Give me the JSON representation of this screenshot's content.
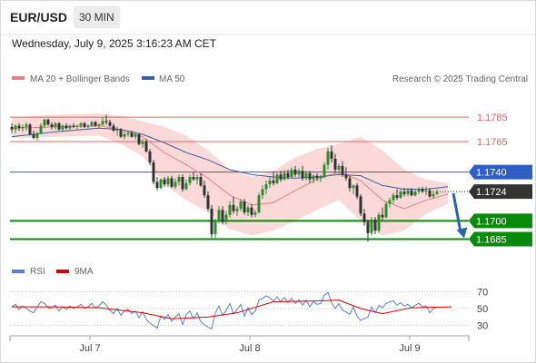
{
  "header": {
    "pair": "EUR/USD",
    "timeframe": "30 MIN",
    "datetime": "Wednesday, July 9, 2025 3:16:23 AM CET",
    "credit": "Research © 2025 Trading Central"
  },
  "colors": {
    "resistance": "#e06666",
    "pivot": "#2d5fc4",
    "support": "#0a8a0a",
    "bullish": "#2e8b2e",
    "bearish": "#333333",
    "bollinger_band": "#fcd9d9",
    "ma20": "#f08080",
    "ma50": "#3a5fa8",
    "arrow": "#2a64b0",
    "rsi": "#5b7fd6",
    "rsi_ma": "#d40000",
    "current": "#333333"
  },
  "chart_data": [
    {
      "type": "candlestick",
      "legend": [
        {
          "label": "MA 20 + Bollinger Bands",
          "color": "#f08080"
        },
        {
          "label": "MA 50",
          "color": "#3a5fa8"
        }
      ],
      "x_tick_labels": [
        "Jul 7",
        "Jul 8",
        "Jul 9"
      ],
      "ylim": [
        1.1675,
        1.18
      ],
      "candle_step": 4.0,
      "ohlc": [
        [
          1.1777,
          1.178,
          1.1772,
          1.1775
        ],
        [
          1.1775,
          1.1779,
          1.1772,
          1.1778
        ],
        [
          1.1778,
          1.178,
          1.1774,
          1.1776
        ],
        [
          1.1776,
          1.1779,
          1.1773,
          1.1777
        ],
        [
          1.1777,
          1.1781,
          1.1774,
          1.1779
        ],
        [
          1.1779,
          1.178,
          1.177,
          1.1771
        ],
        [
          1.1771,
          1.1774,
          1.1767,
          1.1768
        ],
        [
          1.1768,
          1.1773,
          1.1766,
          1.1772
        ],
        [
          1.1772,
          1.178,
          1.1771,
          1.1778
        ],
        [
          1.1778,
          1.1784,
          1.1776,
          1.1783
        ],
        [
          1.1783,
          1.1784,
          1.1778,
          1.1779
        ],
        [
          1.1779,
          1.1781,
          1.1775,
          1.1777
        ],
        [
          1.1777,
          1.1781,
          1.1775,
          1.178
        ],
        [
          1.178,
          1.1781,
          1.1774,
          1.1775
        ],
        [
          1.1775,
          1.1779,
          1.1773,
          1.1778
        ],
        [
          1.1778,
          1.178,
          1.1775,
          1.1776
        ],
        [
          1.1776,
          1.1779,
          1.1774,
          1.1778
        ],
        [
          1.1778,
          1.178,
          1.1776,
          1.1777
        ],
        [
          1.1777,
          1.1779,
          1.1775,
          1.1778
        ],
        [
          1.1778,
          1.1781,
          1.1776,
          1.178
        ],
        [
          1.178,
          1.1781,
          1.1776,
          1.1777
        ],
        [
          1.1777,
          1.1779,
          1.1775,
          1.1778
        ],
        [
          1.1778,
          1.1782,
          1.1777,
          1.1781
        ],
        [
          1.1781,
          1.1782,
          1.1777,
          1.1778
        ],
        [
          1.1778,
          1.178,
          1.1776,
          1.1779
        ],
        [
          1.1779,
          1.1785,
          1.1778,
          1.1782
        ],
        [
          1.1782,
          1.1787,
          1.1779,
          1.1781
        ],
        [
          1.1781,
          1.1783,
          1.1777,
          1.1778
        ],
        [
          1.1778,
          1.178,
          1.1773,
          1.1774
        ],
        [
          1.1774,
          1.1777,
          1.177,
          1.1775
        ],
        [
          1.1775,
          1.1776,
          1.1768,
          1.1769
        ],
        [
          1.1769,
          1.1773,
          1.1767,
          1.1771
        ],
        [
          1.1771,
          1.1774,
          1.1769,
          1.1772
        ],
        [
          1.1772,
          1.1774,
          1.1768,
          1.1769
        ],
        [
          1.1769,
          1.1773,
          1.1767,
          1.1771
        ],
        [
          1.1771,
          1.1772,
          1.1762,
          1.1763
        ],
        [
          1.1763,
          1.1767,
          1.176,
          1.1765
        ],
        [
          1.1765,
          1.1767,
          1.1756,
          1.1757
        ],
        [
          1.1757,
          1.1759,
          1.1746,
          1.1748
        ],
        [
          1.1748,
          1.175,
          1.173,
          1.1732
        ],
        [
          1.1732,
          1.1736,
          1.1725,
          1.1727
        ],
        [
          1.1727,
          1.1735,
          1.1726,
          1.1734
        ],
        [
          1.1734,
          1.1736,
          1.1728,
          1.173
        ],
        [
          1.173,
          1.1737,
          1.1728,
          1.1735
        ],
        [
          1.1735,
          1.1737,
          1.1727,
          1.1728
        ],
        [
          1.1728,
          1.1735,
          1.1726,
          1.1732
        ],
        [
          1.1732,
          1.1738,
          1.1729,
          1.1736
        ],
        [
          1.1736,
          1.1738,
          1.1724,
          1.1726
        ],
        [
          1.1726,
          1.1734,
          1.1725,
          1.1731
        ],
        [
          1.1731,
          1.1738,
          1.1729,
          1.1736
        ],
        [
          1.1736,
          1.174,
          1.1733,
          1.1734
        ],
        [
          1.1734,
          1.1738,
          1.173,
          1.1736
        ],
        [
          1.1736,
          1.1739,
          1.1728,
          1.1729
        ],
        [
          1.1729,
          1.1733,
          1.1719,
          1.1721
        ],
        [
          1.1721,
          1.1724,
          1.1708,
          1.171
        ],
        [
          1.171,
          1.1713,
          1.1686,
          1.1689
        ],
        [
          1.1689,
          1.1702,
          1.1686,
          1.17
        ],
        [
          1.17,
          1.1712,
          1.1698,
          1.1709
        ],
        [
          1.1709,
          1.1712,
          1.1697,
          1.1699
        ],
        [
          1.1699,
          1.1708,
          1.1697,
          1.1705
        ],
        [
          1.1705,
          1.1716,
          1.1703,
          1.1713
        ],
        [
          1.1713,
          1.172,
          1.1706,
          1.1708
        ],
        [
          1.1708,
          1.1712,
          1.1704,
          1.171
        ],
        [
          1.171,
          1.1718,
          1.1708,
          1.1716
        ],
        [
          1.1716,
          1.1718,
          1.1705,
          1.1707
        ],
        [
          1.1707,
          1.1713,
          1.1704,
          1.1711
        ],
        [
          1.1711,
          1.1714,
          1.1703,
          1.1705
        ],
        [
          1.1705,
          1.1709,
          1.1703,
          1.1707
        ],
        [
          1.1707,
          1.1723,
          1.1706,
          1.1721
        ],
        [
          1.1721,
          1.1729,
          1.1718,
          1.1726
        ],
        [
          1.1726,
          1.1733,
          1.1722,
          1.173
        ],
        [
          1.173,
          1.1736,
          1.1727,
          1.1733
        ],
        [
          1.1733,
          1.174,
          1.1729,
          1.1731
        ],
        [
          1.1731,
          1.1739,
          1.173,
          1.1738
        ],
        [
          1.1738,
          1.1741,
          1.1732,
          1.1734
        ],
        [
          1.1734,
          1.1742,
          1.1733,
          1.1739
        ],
        [
          1.1739,
          1.1742,
          1.1734,
          1.1736
        ],
        [
          1.1736,
          1.1744,
          1.1735,
          1.1742
        ],
        [
          1.1742,
          1.1745,
          1.1736,
          1.1738
        ],
        [
          1.1738,
          1.1743,
          1.1736,
          1.1741
        ],
        [
          1.1741,
          1.1745,
          1.1733,
          1.1735
        ],
        [
          1.1735,
          1.1741,
          1.1733,
          1.1739
        ],
        [
          1.1739,
          1.1741,
          1.1731,
          1.1734
        ],
        [
          1.1734,
          1.1738,
          1.1731,
          1.1737
        ],
        [
          1.1737,
          1.1739,
          1.1733,
          1.1735
        ],
        [
          1.1735,
          1.1738,
          1.1732,
          1.1736
        ],
        [
          1.1736,
          1.1748,
          1.1735,
          1.1746
        ],
        [
          1.1746,
          1.176,
          1.1742,
          1.1757
        ],
        [
          1.1757,
          1.1762,
          1.1748,
          1.1751
        ],
        [
          1.1751,
          1.1755,
          1.1739,
          1.1742
        ],
        [
          1.1742,
          1.1747,
          1.1738,
          1.1745
        ],
        [
          1.1745,
          1.1749,
          1.1736,
          1.1738
        ],
        [
          1.1738,
          1.1744,
          1.1733,
          1.1735
        ],
        [
          1.1735,
          1.1737,
          1.1724,
          1.1727
        ],
        [
          1.1727,
          1.173,
          1.1722,
          1.1729
        ],
        [
          1.1729,
          1.1731,
          1.1718,
          1.172
        ],
        [
          1.172,
          1.1722,
          1.1704,
          1.1706
        ],
        [
          1.1706,
          1.171,
          1.1696,
          1.1699
        ],
        [
          1.1699,
          1.1701,
          1.1683,
          1.169
        ],
        [
          1.169,
          1.1703,
          1.1688,
          1.1701
        ],
        [
          1.1701,
          1.1703,
          1.1689,
          1.1692
        ],
        [
          1.1692,
          1.1707,
          1.169,
          1.1705
        ],
        [
          1.1705,
          1.1711,
          1.17,
          1.1703
        ],
        [
          1.1703,
          1.1716,
          1.1702,
          1.1714
        ],
        [
          1.1714,
          1.1719,
          1.1711,
          1.1717
        ],
        [
          1.1717,
          1.1723,
          1.1714,
          1.1721
        ],
        [
          1.1721,
          1.1726,
          1.1717,
          1.1719
        ],
        [
          1.1719,
          1.1726,
          1.1718,
          1.1724
        ],
        [
          1.1724,
          1.1727,
          1.172,
          1.1722
        ],
        [
          1.1722,
          1.1727,
          1.172,
          1.1725
        ],
        [
          1.1725,
          1.1727,
          1.172,
          1.1721
        ],
        [
          1.1721,
          1.1726,
          1.172,
          1.1724
        ],
        [
          1.1724,
          1.1728,
          1.1722,
          1.1726
        ],
        [
          1.1726,
          1.1728,
          1.1723,
          1.1724
        ],
        [
          1.1724,
          1.1728,
          1.1721,
          1.1725
        ],
        [
          1.1725,
          1.1727,
          1.1719,
          1.172
        ],
        [
          1.172,
          1.1725,
          1.1718,
          1.1722
        ],
        [
          1.1722,
          1.1726,
          1.1721,
          1.1724
        ]
      ],
      "ma20": [
        [
          0,
          1.1776
        ],
        [
          12,
          1.1777
        ],
        [
          24,
          1.1778
        ],
        [
          30,
          1.1775
        ],
        [
          36,
          1.1769
        ],
        [
          42,
          1.1756
        ],
        [
          48,
          1.1746
        ],
        [
          54,
          1.1735
        ],
        [
          60,
          1.1721
        ],
        [
          66,
          1.1713
        ],
        [
          72,
          1.1715
        ],
        [
          78,
          1.1725
        ],
        [
          84,
          1.1734
        ],
        [
          90,
          1.174
        ],
        [
          96,
          1.1733
        ],
        [
          102,
          1.1717
        ],
        [
          108,
          1.171
        ],
        [
          114,
          1.1717
        ],
        [
          120,
          1.1722
        ]
      ],
      "ma50": [
        [
          0,
          1.1769
        ],
        [
          12,
          1.1773
        ],
        [
          24,
          1.1776
        ],
        [
          30,
          1.1775
        ],
        [
          36,
          1.1771
        ],
        [
          42,
          1.1764
        ],
        [
          48,
          1.1756
        ],
        [
          54,
          1.175
        ],
        [
          60,
          1.1742
        ],
        [
          66,
          1.1738
        ],
        [
          72,
          1.1736
        ],
        [
          78,
          1.1735
        ],
        [
          84,
          1.1736
        ],
        [
          90,
          1.1738
        ],
        [
          96,
          1.1737
        ],
        [
          102,
          1.1729
        ],
        [
          108,
          1.1726
        ],
        [
          114,
          1.1726
        ],
        [
          120,
          1.1728
        ]
      ],
      "bollinger_upper": [
        [
          0,
          1.1785
        ],
        [
          12,
          1.1787
        ],
        [
          24,
          1.1788
        ],
        [
          30,
          1.1786
        ],
        [
          36,
          1.1782
        ],
        [
          42,
          1.1777
        ],
        [
          48,
          1.177
        ],
        [
          54,
          1.1758
        ],
        [
          60,
          1.1742
        ],
        [
          66,
          1.1736
        ],
        [
          72,
          1.1741
        ],
        [
          78,
          1.1752
        ],
        [
          84,
          1.1759
        ],
        [
          90,
          1.1763
        ],
        [
          96,
          1.1769
        ],
        [
          102,
          1.1758
        ],
        [
          108,
          1.1742
        ],
        [
          114,
          1.1734
        ],
        [
          120,
          1.1731
        ]
      ],
      "bollinger_lower": [
        [
          0,
          1.1768
        ],
        [
          12,
          1.1769
        ],
        [
          24,
          1.177
        ],
        [
          30,
          1.1763
        ],
        [
          36,
          1.1753
        ],
        [
          42,
          1.173
        ],
        [
          48,
          1.1717
        ],
        [
          54,
          1.1707
        ],
        [
          60,
          1.1693
        ],
        [
          66,
          1.1688
        ],
        [
          72,
          1.1692
        ],
        [
          78,
          1.17
        ],
        [
          84,
          1.1709
        ],
        [
          90,
          1.1717
        ],
        [
          96,
          1.17
        ],
        [
          102,
          1.1688
        ],
        [
          108,
          1.1692
        ],
        [
          114,
          1.1706
        ],
        [
          120,
          1.1714
        ]
      ],
      "levels": [
        {
          "price": "1.1785",
          "value": 1.1785,
          "kind": "resistance"
        },
        {
          "price": "1.1765",
          "value": 1.1765,
          "kind": "resistance"
        },
        {
          "price": "1.1740",
          "value": 1.174,
          "kind": "pivot"
        },
        {
          "price": "1.1700",
          "value": 1.17,
          "kind": "support"
        },
        {
          "price": "1.1685",
          "value": 1.1685,
          "kind": "support"
        }
      ],
      "current_price": {
        "price": "1.1724",
        "value": 1.1724
      },
      "projection": {
        "from": [
          120,
          1.1724
        ],
        "to_price": 1.1685
      }
    },
    {
      "type": "line",
      "legend": [
        {
          "label": "RSI",
          "color": "#5b7fd6"
        },
        {
          "label": "9MA",
          "color": "#d40000"
        }
      ],
      "y_tick_labels": [
        "70",
        "50",
        "30"
      ],
      "ylim": [
        20,
        80
      ],
      "rsi": [
        52,
        55,
        49,
        53,
        50,
        47,
        45,
        52,
        58,
        56,
        51,
        50,
        54,
        47,
        52,
        49,
        53,
        50,
        52,
        55,
        50,
        52,
        56,
        51,
        53,
        58,
        54,
        48,
        44,
        50,
        42,
        47,
        49,
        44,
        47,
        39,
        46,
        37,
        33,
        30,
        27,
        41,
        37,
        43,
        35,
        40,
        44,
        31,
        43,
        47,
        38,
        45,
        34,
        31,
        28,
        26,
        45,
        53,
        42,
        48,
        56,
        44,
        49,
        55,
        41,
        51,
        43,
        47,
        60,
        62,
        65,
        63,
        59,
        64,
        58,
        63,
        57,
        62,
        56,
        60,
        54,
        60,
        52,
        58,
        55,
        56,
        66,
        69,
        57,
        50,
        56,
        48,
        46,
        43,
        52,
        41,
        36,
        38,
        40,
        52,
        45,
        54,
        51,
        56,
        58,
        59,
        54,
        57,
        53,
        55,
        51,
        54,
        56,
        52,
        53,
        45,
        50,
        52
      ],
      "rsi_ma": [
        [
          0,
          52
        ],
        [
          12,
          52
        ],
        [
          24,
          51
        ],
        [
          36,
          45
        ],
        [
          44,
          38
        ],
        [
          54,
          40
        ],
        [
          62,
          45
        ],
        [
          72,
          58
        ],
        [
          84,
          59
        ],
        [
          90,
          60
        ],
        [
          96,
          50
        ],
        [
          102,
          44
        ],
        [
          110,
          51
        ],
        [
          121,
          52
        ]
      ]
    }
  ]
}
